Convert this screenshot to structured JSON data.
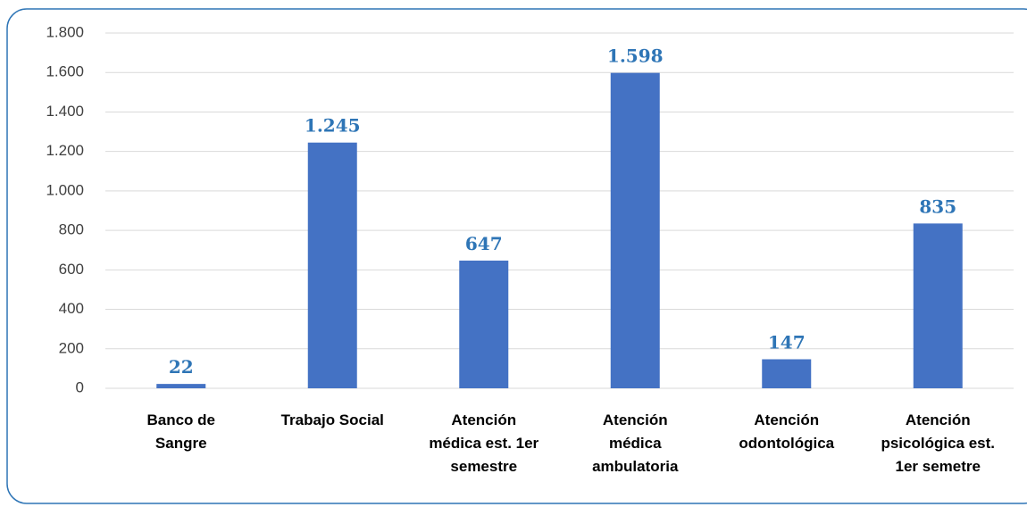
{
  "chart_data": {
    "type": "bar",
    "categories": [
      [
        "Banco de",
        "Sangre"
      ],
      [
        "Trabajo Social"
      ],
      [
        "Atención",
        "médica est. 1er",
        "semestre"
      ],
      [
        "Atención",
        "médica",
        "ambulatoria"
      ],
      [
        "Atención",
        "odontológica"
      ],
      [
        "Atención",
        "psicológica est.",
        "1er semetre"
      ]
    ],
    "values": [
      22,
      1245,
      647,
      1598,
      147,
      835
    ],
    "value_labels": [
      "22",
      "1.245",
      "647",
      "1.598",
      "147",
      "835"
    ],
    "color": "#4472c4",
    "ylim": [
      0,
      1800
    ],
    "yticks": [
      0,
      200,
      400,
      600,
      800,
      {
        "value": 1000,
        "label": "1.000"
      },
      {
        "value": 1200,
        "label": "1.200"
      },
      {
        "value": 1400,
        "label": "1.400"
      },
      {
        "value": 1600,
        "label": "1.600"
      },
      {
        "value": 1800,
        "label": "1.800"
      }
    ],
    "grid": true
  }
}
